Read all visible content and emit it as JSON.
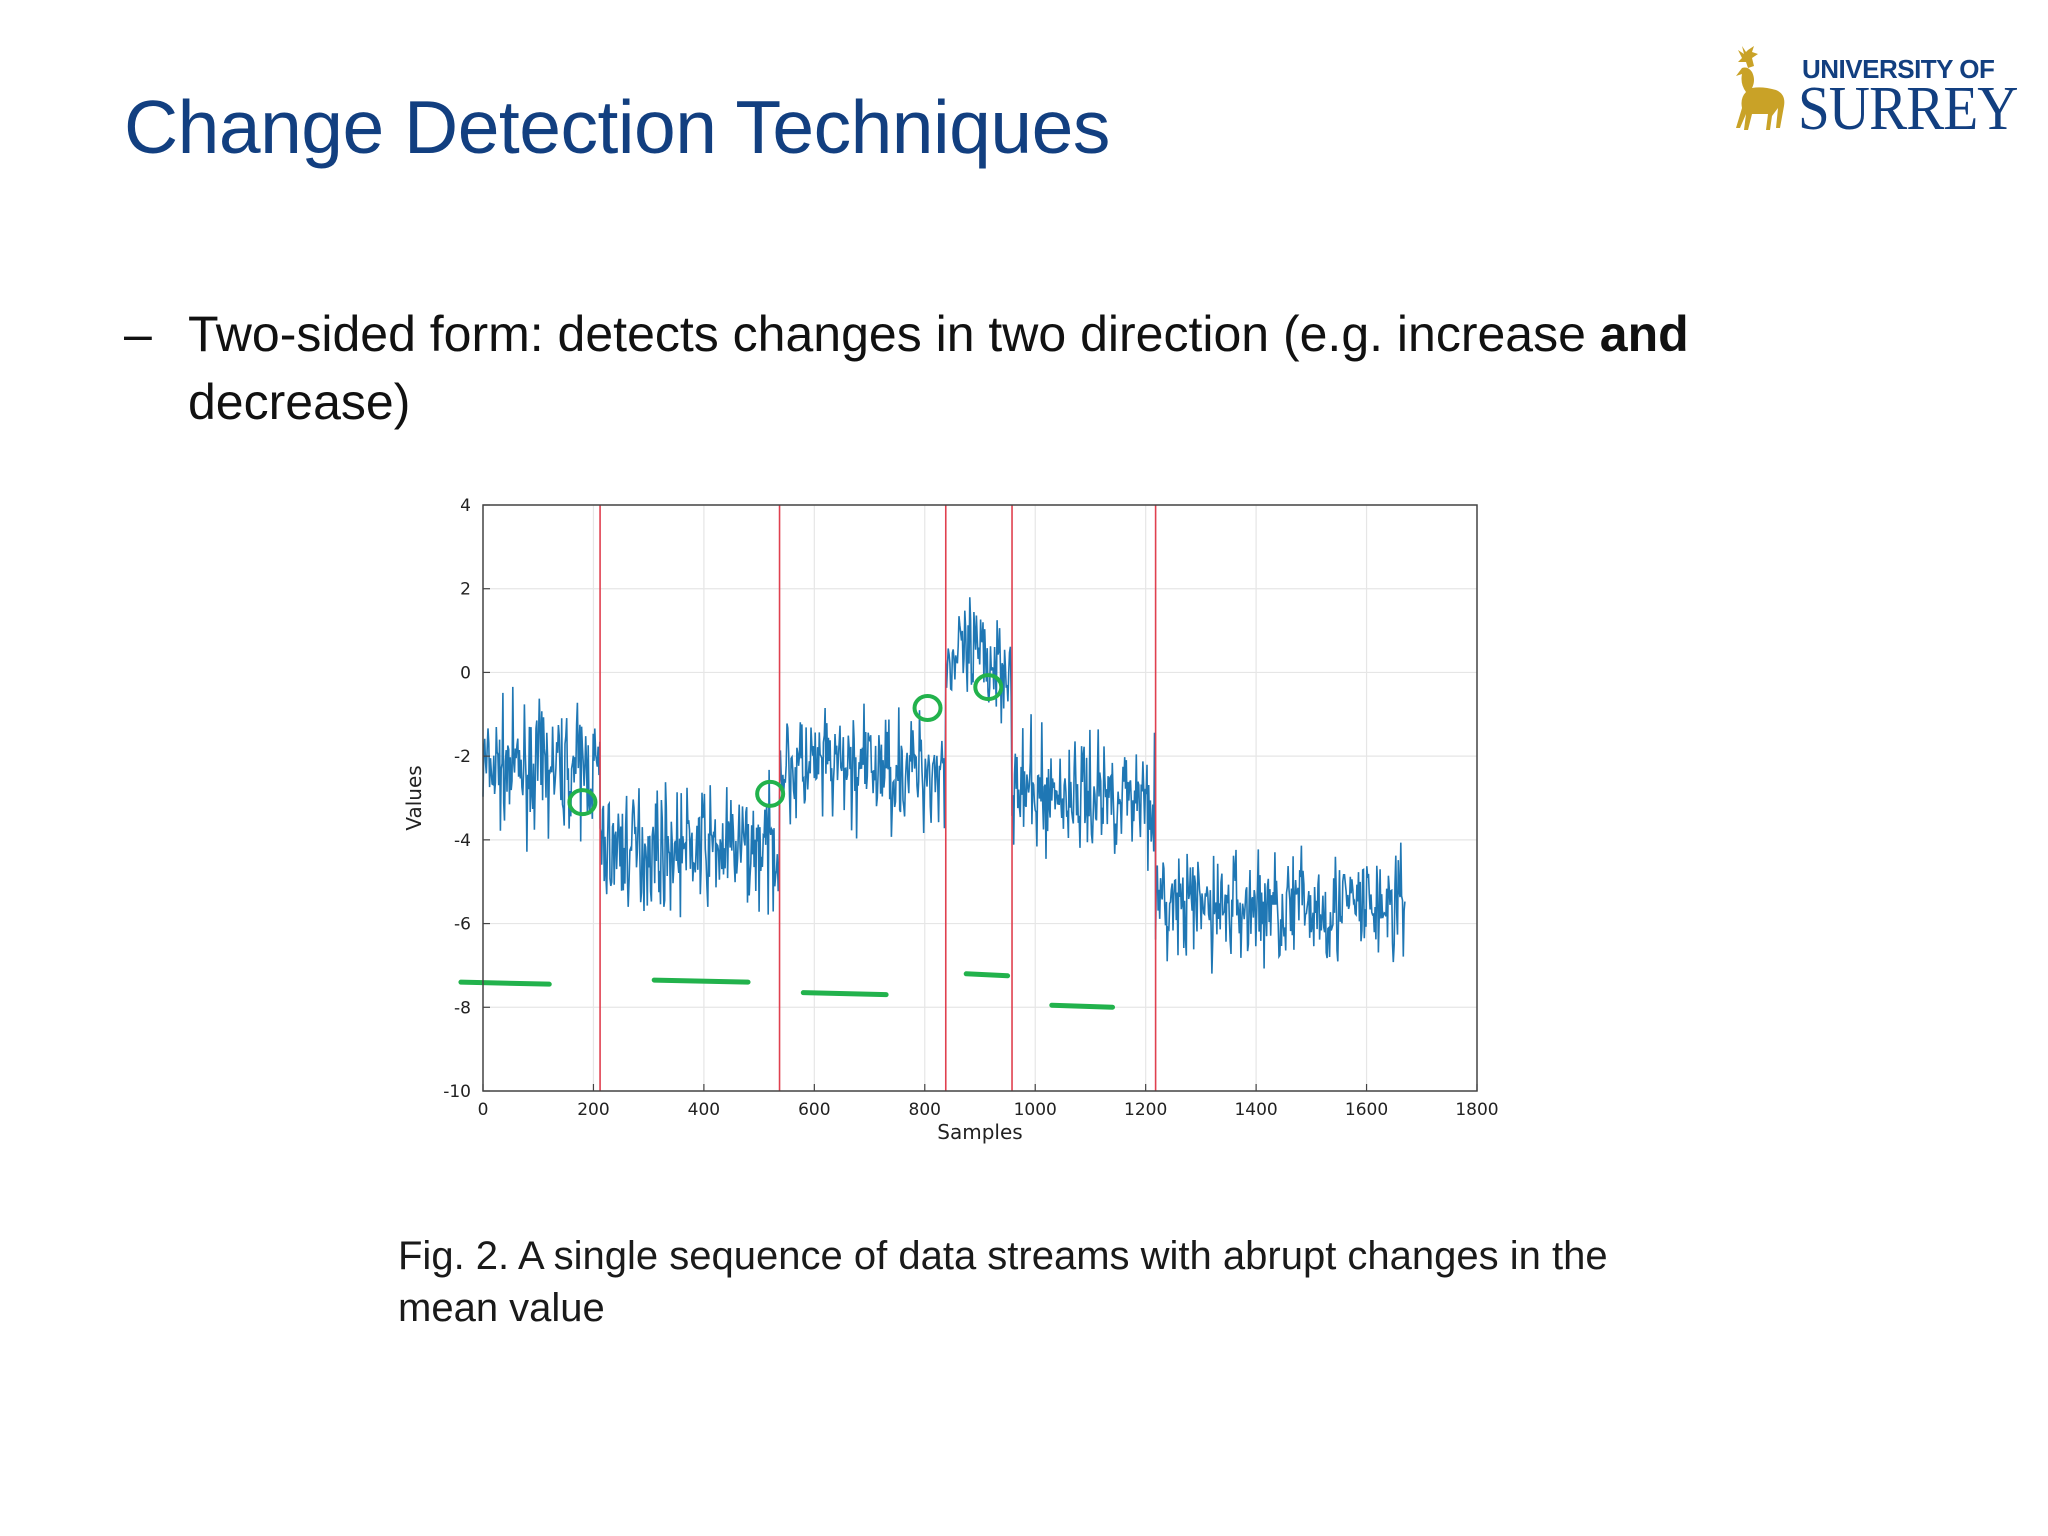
{
  "slide": {
    "title": "Change Detection Techniques",
    "bullet_marker": "–",
    "bullet_text_before": "Two-sided form: detects changes in two direction (e.g. increase ",
    "bullet_text_bold": "and",
    "bullet_text_after": " decrease)",
    "caption": "Fig. 2. A single sequence of data streams with abrupt changes in the mean value"
  },
  "logo": {
    "line1": "UNIVERSITY OF",
    "line2": "SURREY",
    "colors": {
      "text": "#123f80",
      "stag": "#c9a227"
    }
  },
  "colors": {
    "title": "#123f80",
    "series": "#1f77b4",
    "change_lines": "#e0404f",
    "annotation": "#22b24c"
  },
  "chart_data": {
    "type": "line",
    "xlabel": "Samples",
    "ylabel": "Values",
    "xlim": [
      0,
      1800
    ],
    "ylim": [
      -10,
      4
    ],
    "xticks": [
      0,
      200,
      400,
      600,
      800,
      1000,
      1200,
      1400,
      1600,
      1800
    ],
    "yticks": [
      4,
      2,
      0,
      -2,
      -4,
      -6,
      -8,
      -10
    ],
    "grid": true,
    "change_points": [
      212,
      537,
      838,
      958,
      1218
    ],
    "segments": [
      {
        "start": 0,
        "end": 212,
        "mean": -2.3
      },
      {
        "start": 212,
        "end": 537,
        "mean": -4.2
      },
      {
        "start": 537,
        "end": 838,
        "mean": -2.3
      },
      {
        "start": 838,
        "end": 958,
        "mean": 0.3
      },
      {
        "start": 958,
        "end": 1218,
        "mean": -2.9
      },
      {
        "start": 1218,
        "end": 1670,
        "mean": -5.6
      }
    ],
    "annotations": [
      {
        "type": "dash",
        "x": [
          -40,
          120
        ],
        "y": -7.4
      },
      {
        "type": "dash",
        "x": [
          310,
          480
        ],
        "y": -7.35
      },
      {
        "type": "dash",
        "x": [
          580,
          730
        ],
        "y": -7.65
      },
      {
        "type": "dash",
        "x": [
          875,
          950
        ],
        "y": -7.2
      },
      {
        "type": "dash",
        "x": [
          1030,
          1140
        ],
        "y": -7.95
      },
      {
        "type": "circle",
        "x": 180,
        "y": -3.1
      },
      {
        "type": "circle",
        "x": 520,
        "y": -2.9
      },
      {
        "type": "circle",
        "x": 805,
        "y": -0.85
      },
      {
        "type": "circle",
        "x": 915,
        "y": -0.35
      }
    ]
  }
}
